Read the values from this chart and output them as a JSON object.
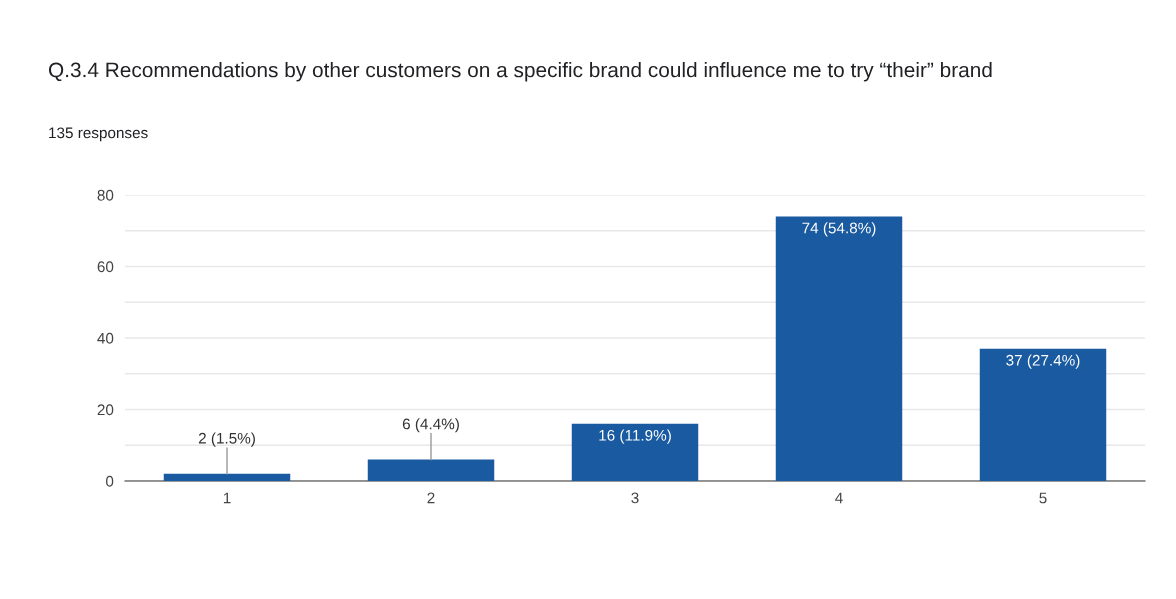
{
  "chart_data": {
    "type": "bar",
    "title": "Q.3.4 Recommendations by other customers on a specific brand could influence me to try “their” brand",
    "subtitle": "135 responses",
    "categories": [
      "1",
      "2",
      "3",
      "4",
      "5"
    ],
    "values": [
      2,
      6,
      16,
      74,
      37
    ],
    "value_labels": [
      "2 (1.5%)",
      "6 (4.4%)",
      "16 (11.9%)",
      "74 (54.8%)",
      "37 (27.4%)"
    ],
    "color": "#1a5aa0",
    "ylim": [
      0,
      80
    ],
    "yticks": [
      0,
      {
        "value": 10,
        "label": null
      },
      20,
      {
        "value": 30,
        "label": null
      },
      40,
      {
        "value": 50,
        "label": null
      },
      60,
      {
        "value": 70,
        "label": null
      },
      80
    ],
    "grid": "y",
    "legend": false
  }
}
